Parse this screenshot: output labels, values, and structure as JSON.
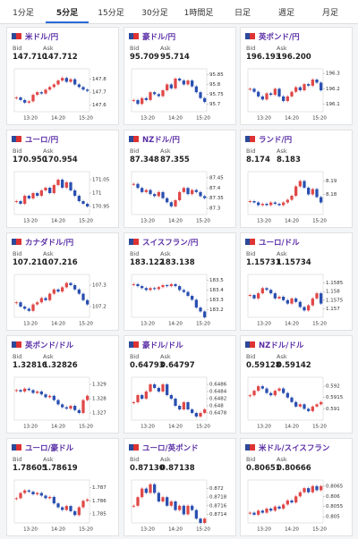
{
  "tabs": {
    "items": [
      "1分足",
      "5分足",
      "15分足",
      "30分足",
      "1時間足",
      "日足",
      "週足",
      "月足"
    ],
    "active": 1
  },
  "bid_label": "Bid",
  "ask_label": "Ask",
  "x_labels": [
    "13:20",
    "14:20",
    "15:20"
  ],
  "cards": [
    {
      "name": "米ドル/円",
      "bid": "147.710",
      "ask": "147.712",
      "ylim": [
        147.55,
        147.88
      ],
      "yticks": [
        147.6,
        147.7,
        147.8
      ],
      "closes": [
        147.66,
        147.64,
        147.62,
        147.63,
        147.68,
        147.7,
        147.69,
        147.72,
        147.74,
        147.76,
        147.79,
        147.81,
        147.78,
        147.8,
        147.76,
        147.74,
        147.72,
        147.71
      ]
    },
    {
      "name": "豪ドル/円",
      "bid": "95.709",
      "ask": "95.714",
      "ylim": [
        95.66,
        95.88
      ],
      "yticks": [
        95.7,
        95.75,
        95.8,
        95.85
      ],
      "closes": [
        95.72,
        95.7,
        95.73,
        95.72,
        95.76,
        95.75,
        95.74,
        95.77,
        95.8,
        95.78,
        95.83,
        95.82,
        95.8,
        95.82,
        95.79,
        95.76,
        95.73,
        95.71
      ]
    },
    {
      "name": "英ポンド/円",
      "bid": "196.193",
      "ask": "196.200",
      "ylim": [
        196.05,
        196.33
      ],
      "yticks": [
        196.1,
        196.2,
        196.3
      ],
      "closes": [
        196.2,
        196.18,
        196.15,
        196.13,
        196.17,
        196.16,
        196.2,
        196.15,
        196.12,
        196.15,
        196.18,
        196.21,
        196.19,
        196.23,
        196.22,
        196.26,
        196.24,
        196.19
      ]
    },
    {
      "name": "ユーロ/円",
      "bid": "170.950",
      "ask": "170.954",
      "ylim": [
        170.92,
        171.08
      ],
      "yticks": [
        170.95,
        171,
        171.05
      ],
      "closes": [
        170.97,
        170.96,
        170.99,
        170.98,
        171,
        170.99,
        171.01,
        171.02,
        171,
        171.03,
        171.05,
        171.02,
        171.04,
        171.01,
        170.99,
        170.97,
        170.96,
        170.95
      ]
    },
    {
      "name": "NZドル/円",
      "bid": "87.348",
      "ask": "87.355",
      "ylim": [
        87.27,
        87.48
      ],
      "yticks": [
        87.3,
        87.35,
        87.4,
        87.45
      ],
      "closes": [
        87.42,
        87.4,
        87.38,
        87.39,
        87.37,
        87.36,
        87.38,
        87.35,
        87.33,
        87.31,
        87.34,
        87.38,
        87.4,
        87.37,
        87.39,
        87.38,
        87.36,
        87.35
      ]
    },
    {
      "name": "ランド/円",
      "bid": "8.174",
      "ask": "8.183",
      "ylim": [
        8.165,
        8.197
      ],
      "yticks": [
        8.18,
        8.19
      ],
      "closes": [
        8.175,
        8.174,
        8.172,
        8.173,
        8.172,
        8.174,
        8.173,
        8.172,
        8.174,
        8.176,
        8.179,
        8.186,
        8.19,
        8.185,
        8.18,
        8.184,
        8.178,
        8.174
      ]
    },
    {
      "name": "カナダドル/円",
      "bid": "107.210",
      "ask": "107.216",
      "ylim": [
        107.15,
        107.35
      ],
      "yticks": [
        107.2,
        107.3
      ],
      "closes": [
        107.22,
        107.2,
        107.19,
        107.18,
        107.21,
        107.22,
        107.24,
        107.23,
        107.26,
        107.28,
        107.27,
        107.29,
        107.31,
        107.3,
        107.28,
        107.26,
        107.23,
        107.21
      ]
    },
    {
      "name": "スイスフラン/円",
      "bid": "183.122",
      "ask": "183.138",
      "ylim": [
        183.12,
        183.56
      ],
      "yticks": [
        183.2,
        183.3,
        183.4,
        183.5
      ],
      "closes": [
        183.46,
        183.44,
        183.42,
        183.4,
        183.42,
        183.41,
        183.43,
        183.45,
        183.44,
        183.46,
        183.44,
        183.4,
        183.38,
        183.34,
        183.3,
        183.22,
        183.18,
        183.12
      ]
    },
    {
      "name": "ユーロ/ドル",
      "bid": "1.15731",
      "ask": "1.15734",
      "ylim": [
        1.1565,
        1.159
      ],
      "yticks": [
        1.157,
        1.1575,
        1.158,
        1.1585
      ],
      "closes": [
        1.1578,
        1.1576,
        1.1579,
        1.1582,
        1.1581,
        1.1579,
        1.1576,
        1.1577,
        1.1575,
        1.1573,
        1.1576,
        1.1574,
        1.1571,
        1.1569,
        1.1572,
        1.1576,
        1.1579,
        1.1573
      ]
    },
    {
      "name": "英ポンド/ドル",
      "bid": "1.32816",
      "ask": "1.32826",
      "ylim": [
        1.3265,
        1.3295
      ],
      "yticks": [
        1.327,
        1.328,
        1.329
      ],
      "closes": [
        1.3286,
        1.3285,
        1.3287,
        1.3286,
        1.3284,
        1.3285,
        1.3283,
        1.3281,
        1.3282,
        1.3279,
        1.3276,
        1.3274,
        1.3273,
        1.3275,
        1.3272,
        1.327,
        1.3279,
        1.3282
      ]
    },
    {
      "name": "豪ドル/ドル",
      "bid": "0.64793",
      "ask": "0.64797",
      "ylim": [
        0.6476,
        0.6488
      ],
      "yticks": [
        0.6478,
        0.648,
        0.6482,
        0.6484,
        0.6486
      ],
      "closes": [
        0.6481,
        0.6483,
        0.6482,
        0.6484,
        0.6486,
        0.6485,
        0.6484,
        0.6486,
        0.6483,
        0.6482,
        0.648,
        0.6479,
        0.6481,
        0.6479,
        0.6478,
        0.6477,
        0.6478,
        0.6479
      ]
    },
    {
      "name": "NZドル/ドル",
      "bid": "0.59128",
      "ask": "0.59142",
      "ylim": [
        0.5905,
        0.5924
      ],
      "yticks": [
        0.591,
        0.5915,
        0.592
      ],
      "closes": [
        0.5916,
        0.5918,
        0.592,
        0.5919,
        0.5917,
        0.5916,
        0.5918,
        0.5919,
        0.5917,
        0.5915,
        0.5913,
        0.5911,
        0.5912,
        0.591,
        0.5909,
        0.5911,
        0.5912,
        0.5913
      ]
    },
    {
      "name": "ユーロ/豪ドル",
      "bid": "1.78605",
      "ask": "1.78619",
      "ylim": [
        1.7843,
        1.7876
      ],
      "yticks": [
        1.785,
        1.786,
        1.787
      ],
      "closes": [
        1.7862,
        1.7866,
        1.7868,
        1.7867,
        1.7865,
        1.7866,
        1.7864,
        1.7862,
        1.7863,
        1.7858,
        1.7855,
        1.7853,
        1.7856,
        1.7852,
        1.7849,
        1.7855,
        1.786,
        1.7861
      ]
    },
    {
      "name": "ユーロ/英ポンド",
      "bid": "0.87130",
      "ask": "0.87138",
      "ylim": [
        0.8712,
        0.8722
      ],
      "yticks": [
        0.8714,
        0.8716,
        0.8718,
        0.872
      ],
      "closes": [
        0.8716,
        0.8718,
        0.872,
        0.8719,
        0.8721,
        0.8719,
        0.8717,
        0.8718,
        0.8716,
        0.8717,
        0.8715,
        0.8716,
        0.8714,
        0.8716,
        0.8715,
        0.8713,
        0.8712,
        0.8713
      ]
    },
    {
      "name": "米ドル/スイスフラン",
      "bid": "0.80651",
      "ask": "0.80666",
      "ylim": [
        0.8047,
        0.8068
      ],
      "yticks": [
        0.805,
        0.8055,
        0.806,
        0.8065
      ],
      "closes": [
        0.8052,
        0.8051,
        0.8053,
        0.8052,
        0.8054,
        0.8053,
        0.8055,
        0.8054,
        0.8056,
        0.8058,
        0.8057,
        0.806,
        0.8062,
        0.8064,
        0.8062,
        0.8065,
        0.8063,
        0.8065
      ]
    }
  ]
}
